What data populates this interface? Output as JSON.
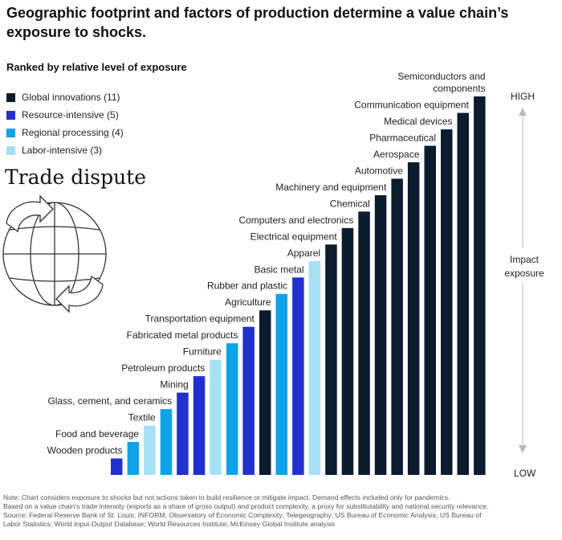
{
  "title": "Geographic footprint and factors of production determine a value chain’s exposure to shocks.",
  "subtitle": "Ranked by relative level of exposure",
  "graphic_label": "Trade dispute",
  "legend": [
    {
      "label": "Global innovations (11)",
      "color": "#0d1b2e"
    },
    {
      "label": "Resource-intensive (5)",
      "color": "#2330d0"
    },
    {
      "label": "Regional processing (4)",
      "color": "#0fa2e6"
    },
    {
      "label": "Labor-intensive (3)",
      "color": "#a6e0f5"
    }
  ],
  "scale": {
    "high": "HIGH",
    "low": "LOW",
    "mid": "Impact exposure"
  },
  "notes": [
    "Note: Chart considers exposure to shocks but not actions taken to build resilience or mitigate impact. Demand effects included only for pandemics.",
    "Based on a value chain’s trade intensity (exports as a share of gross output) and product complexity, a proxy for substitutability and national security relevance.",
    "Source: Federal Reserve Bank of St. Louis; INFORM; Observatory of Economic Complexity; Telegeography; US Bureau of Economic Analysis; US Bureau of",
    "Labor Statistics; World Input-Output Database; World Resources Institute; McKinsey Global Institute analysis"
  ],
  "chart_data": {
    "type": "bar",
    "ylim": [
      0,
      23
    ],
    "categories": [
      "Wooden products",
      "Food and beverage",
      "Textile",
      "Glass, cement, and ceramics",
      "Mining",
      "Petroleum products",
      "Furniture",
      "Fabricated metal products",
      "Transportation equipment",
      "Agriculture",
      "Rubber and plastic",
      "Basic metal",
      "Apparel",
      "Electrical equipment",
      "Computers and electronics",
      "Chemical",
      "Machinery and equipment",
      "Automotive",
      "Aerospace",
      "Pharmaceutical",
      "Medical devices",
      "Communication equipment",
      "Semiconductors and components"
    ],
    "values": [
      1,
      2,
      3,
      4,
      5,
      6,
      7,
      8,
      9,
      10,
      11,
      12,
      13,
      14,
      15,
      16,
      17,
      18,
      19,
      20,
      21,
      22,
      23
    ],
    "groups": [
      "Resource-intensive",
      "Regional processing",
      "Labor-intensive",
      "Regional processing",
      "Resource-intensive",
      "Resource-intensive",
      "Labor-intensive",
      "Regional processing",
      "Resource-intensive",
      "Global innovations",
      "Regional processing",
      "Resource-intensive",
      "Labor-intensive",
      "Global innovations",
      "Global innovations",
      "Global innovations",
      "Global innovations",
      "Global innovations",
      "Global innovations",
      "Global innovations",
      "Global innovations",
      "Global innovations",
      "Global innovations"
    ],
    "label_lines": {
      "Semiconductors and components": [
        "Semiconductors and",
        "components"
      ]
    }
  }
}
